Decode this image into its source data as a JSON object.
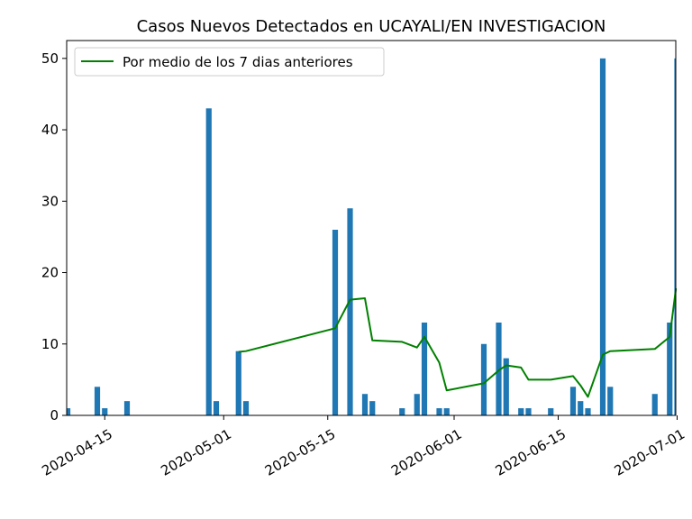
{
  "chart_data": {
    "type": "bar",
    "title": "Casos Nuevos Detectados en UCAYALI/EN INVESTIGACION",
    "xlabel": "",
    "ylabel": "",
    "xlim": [
      "2020-04-10",
      "2020-07-02"
    ],
    "ylim": [
      0,
      52.5
    ],
    "x_ticks": [
      "2020-04-15",
      "2020-05-01",
      "2020-05-15",
      "2020-06-01",
      "2020-06-15",
      "2020-07-01"
    ],
    "y_ticks": [
      0,
      10,
      20,
      30,
      40,
      50
    ],
    "grid": false,
    "legend": {
      "placement": "top-left",
      "entries": [
        "Por medio de los 7 dias anteriores"
      ]
    },
    "colors": {
      "bars": "#1f77b4",
      "line": "#008000"
    },
    "bars": {
      "name": "",
      "dates": [
        "2020-04-10",
        "2020-04-14",
        "2020-04-15",
        "2020-04-18",
        "2020-04-29",
        "2020-04-30",
        "2020-05-03",
        "2020-05-04",
        "2020-05-16",
        "2020-05-18",
        "2020-05-20",
        "2020-05-21",
        "2020-05-25",
        "2020-05-27",
        "2020-05-28",
        "2020-05-30",
        "2020-05-31",
        "2020-06-05",
        "2020-06-07",
        "2020-06-08",
        "2020-06-10",
        "2020-06-11",
        "2020-06-14",
        "2020-06-17",
        "2020-06-18",
        "2020-06-19",
        "2020-06-21",
        "2020-06-22",
        "2020-06-28",
        "2020-06-30",
        "2020-07-01",
        "2020-07-02"
      ],
      "values": [
        1,
        4,
        1,
        2,
        43,
        2,
        9,
        2,
        26,
        29,
        3,
        2,
        1,
        3,
        13,
        1,
        1,
        10,
        13,
        8,
        1,
        1,
        1,
        4,
        2,
        1,
        50,
        4,
        3,
        13,
        50,
        3
      ]
    },
    "series": [
      {
        "name": "Por medio de los 7 dias anteriores",
        "dates": [
          "2020-05-03",
          "2020-05-04",
          "2020-05-16",
          "2020-05-18",
          "2020-05-20",
          "2020-05-21",
          "2020-05-25",
          "2020-05-27",
          "2020-05-28",
          "2020-05-30",
          "2020-05-31",
          "2020-06-05",
          "2020-06-07",
          "2020-06-08",
          "2020-06-10",
          "2020-06-11",
          "2020-06-14",
          "2020-06-17",
          "2020-06-18",
          "2020-06-19",
          "2020-06-21",
          "2020-06-22",
          "2020-06-28",
          "2020-06-30",
          "2020-07-01",
          "2020-07-02"
        ],
        "values": [
          8.9,
          9.0,
          12.2,
          16.2,
          16.4,
          10.5,
          10.3,
          9.5,
          11.0,
          7.4,
          3.5,
          4.5,
          6.3,
          7.0,
          6.7,
          5.0,
          5.0,
          5.5,
          4.2,
          2.6,
          8.5,
          9.0,
          9.3,
          11.0,
          17.6,
          17.8
        ]
      }
    ]
  }
}
